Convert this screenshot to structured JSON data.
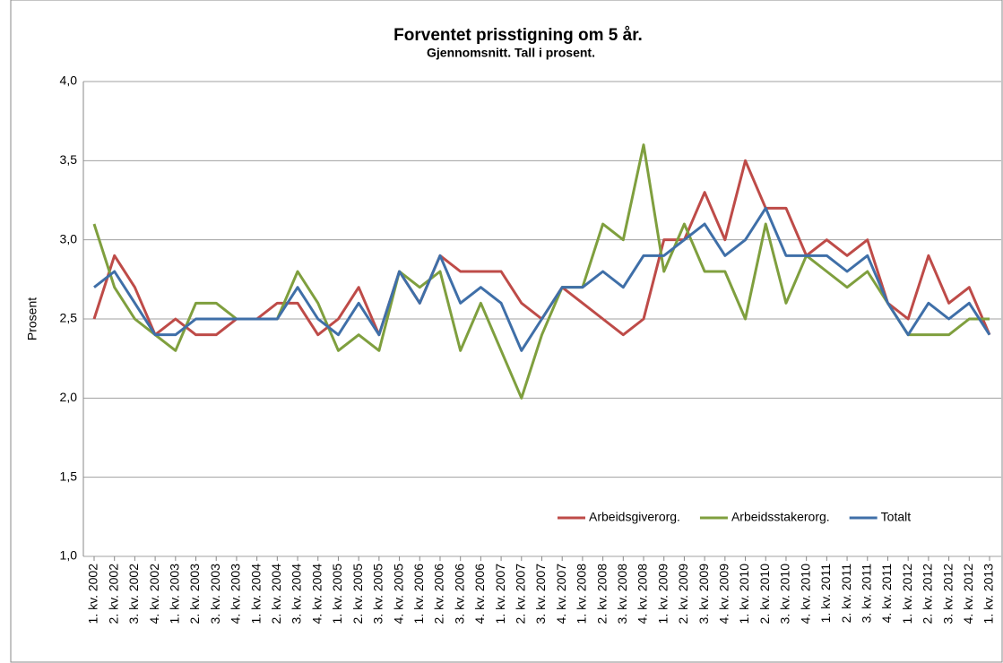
{
  "chart_data": {
    "type": "line",
    "title": "Forventet prisstigning om 5 år.",
    "subtitle": "Gjennomsnitt.  Tall i prosent.",
    "y_label": "Prosent",
    "categories": [
      "1. kv. 2002",
      "2. kv. 2002",
      "3. kv. 2002",
      "4. kv. 2002",
      "1. kv. 2003",
      "2. kv. 2003",
      "3. kv. 2003",
      "4. kv. 2003",
      "1. kv. 2004",
      "2. kv. 2004",
      "3. kv. 2004",
      "4. kv. 2004",
      "1. kv. 2005",
      "2. kv. 2005",
      "3. kv. 2005",
      "4. kv. 2005",
      "1. kv. 2006",
      "2. kv. 2006",
      "3. kv. 2006",
      "4. kv. 2006",
      "1. kv. 2007",
      "2. kv. 2007",
      "3. kv. 2007",
      "4. kv. 2007",
      "1. kv. 2008",
      "2. kv. 2008",
      "3. kv. 2008",
      "4. kv. 2008",
      "1. kv. 2009",
      "2. kv. 2009",
      "3. kv. 2009",
      "4. kv. 2009",
      "1. kv. 2010",
      "2. kv. 2010",
      "3. kv. 2010",
      "4. kv. 2010",
      "1. kv. 2011",
      "2. kv. 2011",
      "3. kv. 2011",
      "4. kv. 2011",
      "1. kv. 2012",
      "2. kv. 2012",
      "3. kv. 2012",
      "4. kv. 2012",
      "1. kv. 2013"
    ],
    "series": [
      {
        "name": "Arbeidsgiverorg.",
        "color": "#be4b48",
        "values": [
          2.5,
          2.9,
          2.7,
          2.4,
          2.5,
          2.4,
          2.4,
          2.5,
          2.5,
          2.6,
          2.6,
          2.4,
          2.5,
          2.7,
          2.4,
          2.8,
          2.6,
          2.9,
          2.8,
          2.8,
          2.8,
          2.6,
          2.5,
          2.7,
          2.6,
          2.5,
          2.4,
          2.5,
          3.0,
          3.0,
          3.3,
          3.0,
          3.5,
          3.2,
          3.2,
          2.9,
          3.0,
          2.9,
          3.0,
          2.6,
          2.5,
          2.9,
          2.6,
          2.7,
          2.4
        ]
      },
      {
        "name": "Arbeidsstakerorg.",
        "color": "#7f9f3e",
        "values": [
          3.1,
          2.7,
          2.5,
          2.4,
          2.3,
          2.6,
          2.6,
          2.5,
          2.5,
          2.5,
          2.8,
          2.6,
          2.3,
          2.4,
          2.3,
          2.8,
          2.7,
          2.8,
          2.3,
          2.6,
          2.3,
          2.0,
          2.4,
          2.7,
          2.7,
          3.1,
          3.0,
          3.6,
          2.8,
          3.1,
          2.8,
          2.8,
          2.5,
          3.1,
          2.6,
          2.9,
          2.8,
          2.7,
          2.8,
          2.6,
          2.4,
          2.4,
          2.4,
          2.5,
          2.5
        ]
      },
      {
        "name": "Totalt",
        "color": "#3f6fa8",
        "values": [
          2.7,
          2.8,
          2.6,
          2.4,
          2.4,
          2.5,
          2.5,
          2.5,
          2.5,
          2.5,
          2.7,
          2.5,
          2.4,
          2.6,
          2.4,
          2.8,
          2.6,
          2.9,
          2.6,
          2.7,
          2.6,
          2.3,
          2.5,
          2.7,
          2.7,
          2.8,
          2.7,
          2.9,
          2.9,
          3.0,
          3.1,
          2.9,
          3.0,
          3.2,
          2.9,
          2.9,
          2.9,
          2.8,
          2.9,
          2.6,
          2.4,
          2.6,
          2.5,
          2.6,
          2.4
        ]
      }
    ],
    "ylim": [
      1,
      4
    ],
    "yticks": [
      {
        "value": 1,
        "label": "1,0"
      },
      {
        "value": 1.5,
        "label": "1,5"
      },
      {
        "value": 2,
        "label": "2,0"
      },
      {
        "value": 2.5,
        "label": "2,5"
      },
      {
        "value": 3,
        "label": "3,0"
      },
      {
        "value": 3.5,
        "label": "3,5"
      },
      {
        "value": 4,
        "label": "4,0"
      }
    ],
    "grid": true,
    "legend": "lower right"
  }
}
